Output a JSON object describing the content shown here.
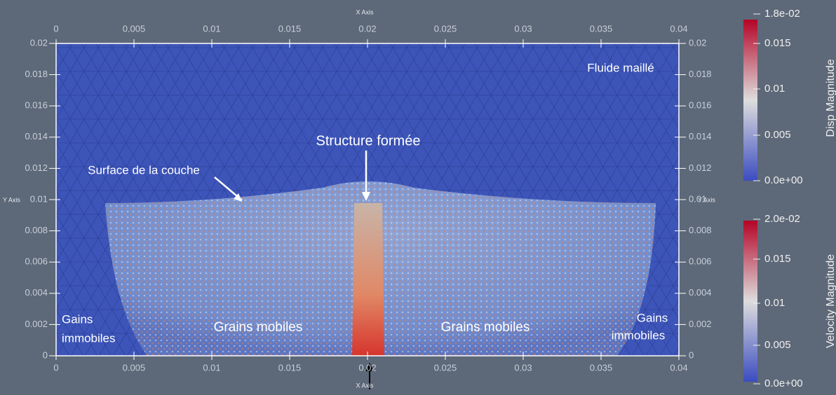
{
  "axes": {
    "top_title": "X Axis",
    "bottom_title": "X Axis",
    "left_title": "Y Axis",
    "right_title": "Y Axis",
    "x_ticks": [
      "0",
      "0.005",
      "0.01",
      "0.015",
      "0.02",
      "0.025",
      "0.03",
      "0.035",
      "0.04"
    ],
    "y_ticks": [
      "0",
      "0.002",
      "0.004",
      "0.006",
      "0.008",
      "0.01",
      "0.012",
      "0.014",
      "0.016",
      "0.018",
      "0.02"
    ]
  },
  "annotations": {
    "fluid": "Fluide maillé",
    "structure": "Structure formée",
    "surface": "Surface de la couche",
    "left_immobile": [
      "Gains",
      "immobiles"
    ],
    "left_mobile": "Grains mobiles",
    "right_mobile": "Grains mobiles",
    "right_immobile": [
      "Gains",
      "immobiles"
    ]
  },
  "colorbars": [
    {
      "title": "Disp Magnitude",
      "labels": [
        "1.8e-02",
        "0.015",
        "0.01",
        "0.005",
        "0.0e+00"
      ]
    },
    {
      "title": "Velocity Magnitude",
      "labels": [
        "2.0e-02",
        "0.015",
        "0.01",
        "0.005",
        "0.0e+00"
      ]
    }
  ]
}
